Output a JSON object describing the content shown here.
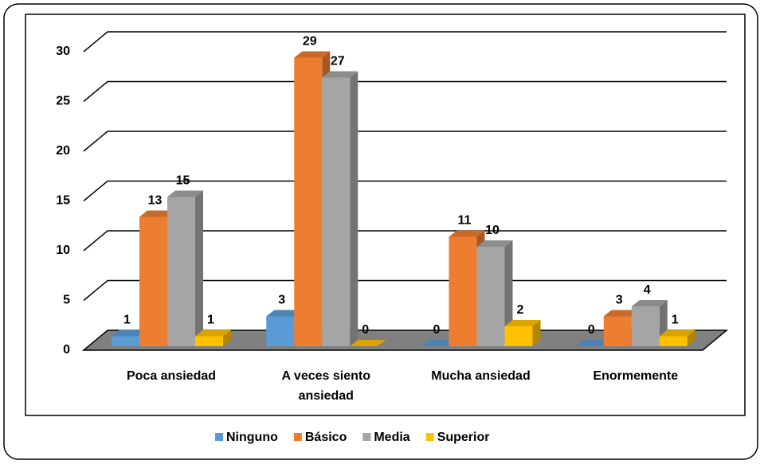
{
  "chart_data": {
    "type": "bar3d",
    "categories": [
      "Poca ansiedad",
      "A veces siento ansiedad",
      "Mucha ansiedad",
      "Enormemente"
    ],
    "series": [
      {
        "name": "Ninguno",
        "color": "#5B9BD5",
        "values": [
          1,
          3,
          0,
          0
        ]
      },
      {
        "name": "Básico",
        "color": "#ED7D31",
        "values": [
          13,
          29,
          11,
          3
        ]
      },
      {
        "name": "Media",
        "color": "#A5A5A5",
        "values": [
          15,
          27,
          10,
          4
        ]
      },
      {
        "name": "Superior",
        "color": "#FFC000",
        "values": [
          1,
          0,
          2,
          1
        ]
      }
    ],
    "ylim": [
      0,
      30
    ],
    "yticks": [
      0,
      5,
      10,
      15,
      20,
      25,
      30
    ],
    "grid": true,
    "legend": "bottom"
  }
}
